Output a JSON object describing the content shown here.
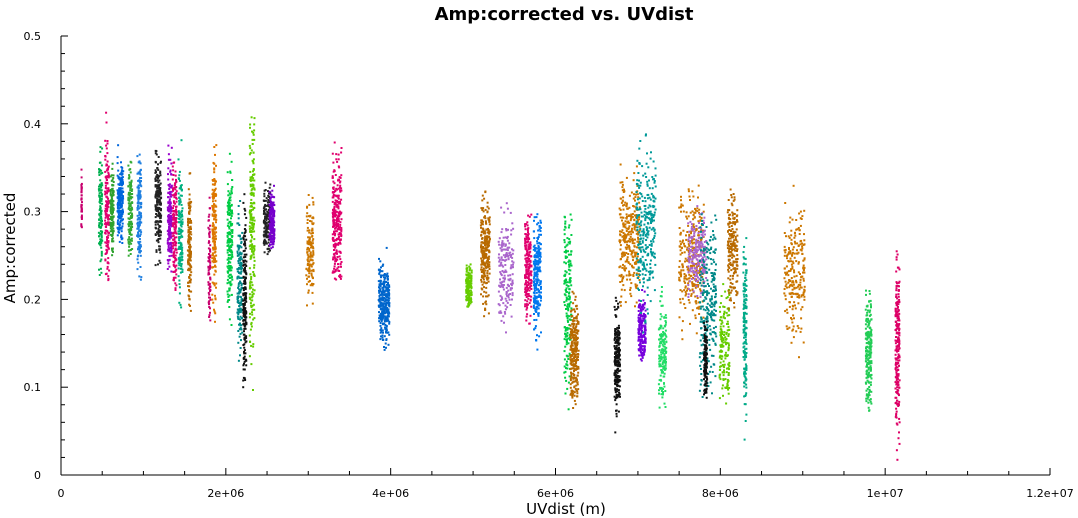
{
  "chart_data": {
    "type": "scatter",
    "title": "Amp:corrected vs. UVdist",
    "xlabel": "UVdist (m)",
    "ylabel": "Amp:corrected",
    "xlim": [
      0,
      12000000
    ],
    "ylim": [
      0,
      0.5
    ],
    "x_ticks": [
      {
        "value": 0,
        "label": "0"
      },
      {
        "value": 2000000,
        "label": "2e+06"
      },
      {
        "value": 4000000,
        "label": "4e+06"
      },
      {
        "value": 6000000,
        "label": "6e+06"
      },
      {
        "value": 8000000,
        "label": "8e+06"
      },
      {
        "value": 10000000,
        "label": "1e+07"
      },
      {
        "value": 12000000,
        "label": "1.2e+07"
      }
    ],
    "y_ticks": [
      {
        "value": 0,
        "label": "0"
      },
      {
        "value": 0.1,
        "label": "0.1"
      },
      {
        "value": 0.2,
        "label": "0.2"
      },
      {
        "value": 0.3,
        "label": "0.3"
      },
      {
        "value": 0.4,
        "label": "0.4"
      },
      {
        "value": 0.5,
        "label": "0.5"
      }
    ],
    "grid": false,
    "legend": "none",
    "clusters": [
      {
        "x": 250000,
        "dx": 10000,
        "y": 0.31,
        "ymin": 0.265,
        "ymax": 0.36,
        "color": "#c8006e",
        "n": 40
      },
      {
        "x": 480000,
        "dx": 40000,
        "y": 0.3,
        "ymin": 0.2,
        "ymax": 0.38,
        "color": "#00b050",
        "n": 120
      },
      {
        "x": 560000,
        "dx": 50000,
        "y": 0.3,
        "ymin": 0.22,
        "ymax": 0.44,
        "color": "#e0006e",
        "n": 160
      },
      {
        "x": 620000,
        "dx": 40000,
        "y": 0.3,
        "ymin": 0.24,
        "ymax": 0.37,
        "color": "#2ea12e",
        "n": 120
      },
      {
        "x": 720000,
        "dx": 70000,
        "y": 0.31,
        "ymin": 0.26,
        "ymax": 0.39,
        "color": "#0066dd",
        "n": 200
      },
      {
        "x": 840000,
        "dx": 50000,
        "y": 0.3,
        "ymin": 0.22,
        "ymax": 0.36,
        "color": "#33aa33",
        "n": 130
      },
      {
        "x": 950000,
        "dx": 50000,
        "y": 0.3,
        "ymin": 0.19,
        "ymax": 0.37,
        "color": "#1f7fe0",
        "n": 150
      },
      {
        "x": 1180000,
        "dx": 70000,
        "y": 0.31,
        "ymin": 0.22,
        "ymax": 0.38,
        "color": "#222222",
        "n": 200
      },
      {
        "x": 1320000,
        "dx": 50000,
        "y": 0.29,
        "ymin": 0.23,
        "ymax": 0.41,
        "color": "#9900cc",
        "n": 160
      },
      {
        "x": 1380000,
        "dx": 50000,
        "y": 0.29,
        "ymin": 0.2,
        "ymax": 0.39,
        "color": "#e0006e",
        "n": 150
      },
      {
        "x": 1450000,
        "dx": 50000,
        "y": 0.27,
        "ymin": 0.19,
        "ymax": 0.4,
        "color": "#00b080",
        "n": 140
      },
      {
        "x": 1560000,
        "dx": 40000,
        "y": 0.26,
        "ymin": 0.18,
        "ymax": 0.35,
        "color": "#b86a00",
        "n": 150
      },
      {
        "x": 1800000,
        "dx": 25000,
        "y": 0.24,
        "ymin": 0.14,
        "ymax": 0.36,
        "color": "#c8006e",
        "n": 80
      },
      {
        "x": 1860000,
        "dx": 50000,
        "y": 0.28,
        "ymin": 0.17,
        "ymax": 0.41,
        "color": "#dd7700",
        "n": 180
      },
      {
        "x": 2050000,
        "dx": 60000,
        "y": 0.27,
        "ymin": 0.17,
        "ymax": 0.4,
        "color": "#00cc44",
        "n": 180
      },
      {
        "x": 2170000,
        "dx": 60000,
        "y": 0.22,
        "ymin": 0.13,
        "ymax": 0.34,
        "color": "#008888",
        "n": 150
      },
      {
        "x": 2230000,
        "dx": 40000,
        "y": 0.2,
        "ymin": 0.08,
        "ymax": 0.33,
        "color": "#111111",
        "n": 170
      },
      {
        "x": 2320000,
        "dx": 60000,
        "y": 0.27,
        "ymin": 0.05,
        "ymax": 0.41,
        "color": "#66cc00",
        "n": 200
      },
      {
        "x": 2500000,
        "dx": 80000,
        "y": 0.29,
        "ymin": 0.25,
        "ymax": 0.36,
        "color": "#222222",
        "n": 160
      },
      {
        "x": 2560000,
        "dx": 60000,
        "y": 0.29,
        "ymin": 0.25,
        "ymax": 0.34,
        "color": "#7700cc",
        "n": 200
      },
      {
        "x": 3020000,
        "dx": 90000,
        "y": 0.26,
        "ymin": 0.18,
        "ymax": 0.33,
        "color": "#cc7700",
        "n": 140
      },
      {
        "x": 3350000,
        "dx": 110000,
        "y": 0.29,
        "ymin": 0.22,
        "ymax": 0.43,
        "color": "#e0006e",
        "n": 260
      },
      {
        "x": 3920000,
        "dx": 130000,
        "y": 0.195,
        "ymin": 0.14,
        "ymax": 0.26,
        "color": "#0066cc",
        "n": 300
      },
      {
        "x": 4950000,
        "dx": 70000,
        "y": 0.215,
        "ymin": 0.18,
        "ymax": 0.25,
        "color": "#66cc00",
        "n": 150
      },
      {
        "x": 5150000,
        "dx": 110000,
        "y": 0.255,
        "ymin": 0.18,
        "ymax": 0.35,
        "color": "#b86a00",
        "n": 260
      },
      {
        "x": 5400000,
        "dx": 180000,
        "y": 0.235,
        "ymin": 0.13,
        "ymax": 0.31,
        "color": "#aa66cc",
        "n": 180
      },
      {
        "x": 5670000,
        "dx": 80000,
        "y": 0.235,
        "ymin": 0.17,
        "ymax": 0.33,
        "color": "#e0006e",
        "n": 200
      },
      {
        "x": 5780000,
        "dx": 90000,
        "y": 0.225,
        "ymin": 0.13,
        "ymax": 0.31,
        "color": "#0077ee",
        "n": 230
      },
      {
        "x": 6150000,
        "dx": 90000,
        "y": 0.2,
        "ymin": 0.03,
        "ymax": 0.3,
        "color": "#00cc44",
        "n": 180
      },
      {
        "x": 6230000,
        "dx": 100000,
        "y": 0.14,
        "ymin": 0.07,
        "ymax": 0.23,
        "color": "#b86a00",
        "n": 260
      },
      {
        "x": 6750000,
        "dx": 70000,
        "y": 0.13,
        "ymin": 0.04,
        "ymax": 0.21,
        "color": "#111111",
        "n": 220
      },
      {
        "x": 6900000,
        "dx": 250000,
        "y": 0.27,
        "ymin": 0.17,
        "ymax": 0.36,
        "color": "#cc7700",
        "n": 300
      },
      {
        "x": 7050000,
        "dx": 90000,
        "y": 0.165,
        "ymin": 0.13,
        "ymax": 0.23,
        "color": "#7700dd",
        "n": 200
      },
      {
        "x": 7100000,
        "dx": 240000,
        "y": 0.28,
        "ymin": 0.15,
        "ymax": 0.42,
        "color": "#009999",
        "n": 280
      },
      {
        "x": 7300000,
        "dx": 90000,
        "y": 0.14,
        "ymin": 0.07,
        "ymax": 0.22,
        "color": "#22dd66",
        "n": 160
      },
      {
        "x": 7650000,
        "dx": 300000,
        "y": 0.25,
        "ymin": 0.15,
        "ymax": 0.36,
        "color": "#cc7700",
        "n": 300
      },
      {
        "x": 7720000,
        "dx": 220000,
        "y": 0.25,
        "ymin": 0.19,
        "ymax": 0.31,
        "color": "#aa66cc",
        "n": 200
      },
      {
        "x": 7850000,
        "dx": 200000,
        "y": 0.2,
        "ymin": 0.02,
        "ymax": 0.3,
        "color": "#008888",
        "n": 260
      },
      {
        "x": 7820000,
        "dx": 40000,
        "y": 0.13,
        "ymin": 0.07,
        "ymax": 0.19,
        "color": "#111111",
        "n": 120
      },
      {
        "x": 8050000,
        "dx": 120000,
        "y": 0.15,
        "ymin": 0.07,
        "ymax": 0.25,
        "color": "#66cc00",
        "n": 160
      },
      {
        "x": 8150000,
        "dx": 120000,
        "y": 0.26,
        "ymin": 0.18,
        "ymax": 0.35,
        "color": "#b86a00",
        "n": 200
      },
      {
        "x": 8300000,
        "dx": 40000,
        "y": 0.17,
        "ymin": 0.03,
        "ymax": 0.29,
        "color": "#00aa88",
        "n": 150
      },
      {
        "x": 8900000,
        "dx": 250000,
        "y": 0.23,
        "ymin": 0.13,
        "ymax": 0.34,
        "color": "#cc7700",
        "n": 230
      },
      {
        "x": 9800000,
        "dx": 70000,
        "y": 0.14,
        "ymin": 0.04,
        "ymax": 0.23,
        "color": "#22cc55",
        "n": 200
      },
      {
        "x": 10150000,
        "dx": 50000,
        "y": 0.15,
        "ymin": 0.005,
        "ymax": 0.29,
        "color": "#dd0066",
        "n": 230
      }
    ]
  }
}
